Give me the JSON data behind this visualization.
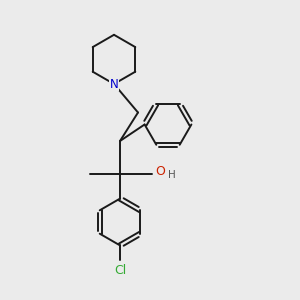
{
  "background_color": "#ebebeb",
  "bond_color": "#1a1a1a",
  "N_color": "#0000cc",
  "O_color": "#cc2200",
  "Cl_color": "#33aa33",
  "H_color": "#555555",
  "line_width": 1.4,
  "figsize": [
    3.0,
    3.0
  ],
  "dpi": 100,
  "xlim": [
    0,
    10
  ],
  "ylim": [
    0,
    10
  ],
  "pip_r": 0.82,
  "ph_r": 0.78,
  "clph_r": 0.78
}
